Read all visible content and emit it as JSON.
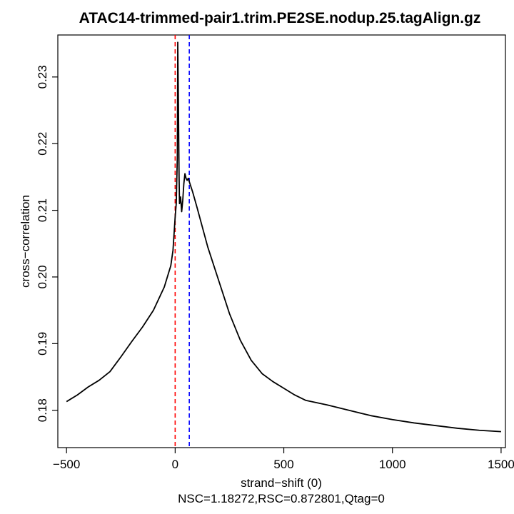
{
  "chart_data": {
    "type": "line",
    "title": "ATAC14-trimmed-pair1.trim.PE2SE.nodup.25.tagAlign.gz",
    "xlabel": "strand−shift (0)",
    "subtitle": "NSC=1.18272,RSC=0.872801,Qtag=0",
    "ylabel": "cross−correlation",
    "xlim": [
      -540,
      1520
    ],
    "ylim": [
      0.1744,
      0.2363
    ],
    "x_ticks": [
      -500,
      0,
      500,
      1000,
      1500
    ],
    "x_tick_labels": [
      "−500",
      "0",
      "500",
      "1000",
      "1500"
    ],
    "y_ticks": [
      0.18,
      0.19,
      0.2,
      0.21,
      0.22,
      0.23
    ],
    "y_tick_labels": [
      "0.18",
      "0.19",
      "0.20",
      "0.21",
      "0.22",
      "0.23"
    ],
    "grid": false,
    "series": [
      {
        "color": "#000000",
        "x": [
          -500,
          -450,
          -400,
          -350,
          -300,
          -250,
          -200,
          -150,
          -100,
          -50,
          -20,
          -10,
          0,
          5,
          10,
          12,
          15,
          18,
          20,
          25,
          30,
          35,
          40,
          45,
          50,
          55,
          60,
          65,
          70,
          80,
          100,
          150,
          200,
          250,
          300,
          350,
          400,
          450,
          500,
          550,
          600,
          700,
          800,
          900,
          1000,
          1100,
          1200,
          1300,
          1400,
          1500
        ],
        "y": [
          0.1813,
          0.1823,
          0.1835,
          0.1845,
          0.1858,
          0.188,
          0.1903,
          0.1925,
          0.195,
          0.1985,
          0.2017,
          0.204,
          0.209,
          0.211,
          0.218,
          0.2352,
          0.226,
          0.215,
          0.211,
          0.212,
          0.2098,
          0.2115,
          0.214,
          0.2155,
          0.2148,
          0.2145,
          0.2148,
          0.2143,
          0.2138,
          0.2128,
          0.2105,
          0.2045,
          0.1995,
          0.1945,
          0.1905,
          0.1875,
          0.1855,
          0.1843,
          0.1833,
          0.1823,
          0.1815,
          0.1808,
          0.18,
          0.1792,
          0.1786,
          0.1781,
          0.1777,
          0.1773,
          0.177,
          0.1768
        ]
      }
    ],
    "vlines": [
      {
        "x": 0,
        "color": "#ff0000",
        "style": "dashed"
      },
      {
        "x": 65,
        "color": "#0000ff",
        "style": "dashed"
      }
    ]
  }
}
